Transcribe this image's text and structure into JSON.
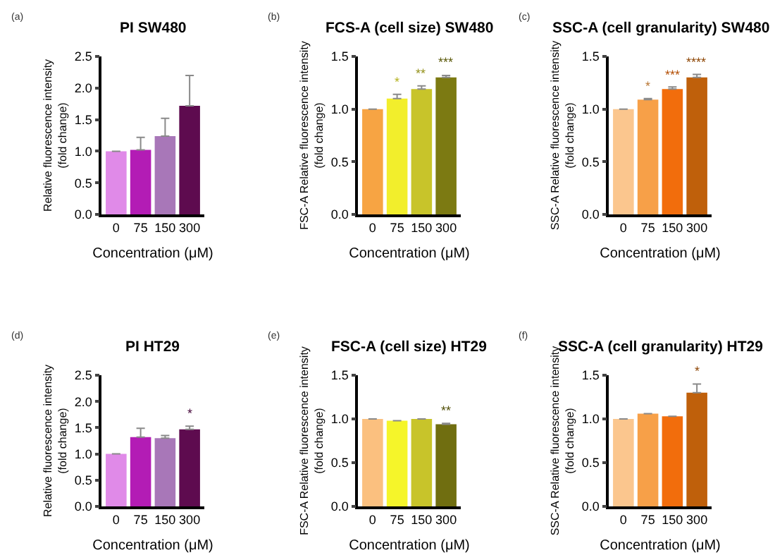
{
  "chart_data": [
    {
      "type": "bar",
      "title": "PI SW480",
      "xlabel": "Concentration (μM)",
      "ylabel": "Relative fluorescence intensity\n(fold change)",
      "categories": [
        "0",
        "75",
        "150",
        "300"
      ],
      "values": [
        1.0,
        1.02,
        1.24,
        1.72
      ],
      "errors": [
        null,
        [
          1.02,
          1.22
        ],
        [
          1.24,
          1.52
        ],
        [
          1.72,
          2.2
        ]
      ],
      "colors": [
        "#e08ae8",
        "#b31cb5",
        "#a877b8",
        "#5e0b4f"
      ],
      "ylim": [
        0,
        2.5
      ],
      "yticks": [
        {
          "value": 0,
          "label": "0.0"
        },
        0.5,
        {
          "value": 1,
          "label": "1.0"
        },
        1.5,
        {
          "value": 2,
          "label": "2.0"
        },
        2.5
      ],
      "annotations": [
        "(a)"
      ]
    },
    {
      "type": "bar",
      "title": "FCS-A (cell size) SW480",
      "xlabel": "Concentration (μM)",
      "ylabel": "FSC-A Relative fluorescence intensity\n(fold change)",
      "categories": [
        "0",
        "75",
        "150",
        "300"
      ],
      "values": [
        1.0,
        1.1,
        1.19,
        1.3
      ],
      "errors": [
        null,
        [
          1.1,
          1.14
        ],
        [
          1.19,
          1.22
        ],
        [
          1.3,
          1.32
        ]
      ],
      "colors": [
        "#f7a443",
        "#f2ee2c",
        "#c8c42a",
        "#7c7a12"
      ],
      "ylim": [
        0,
        1.5
      ],
      "yticks": [
        {
          "value": 0,
          "label": "0.0"
        },
        0.5,
        {
          "value": 1,
          "label": "1.0"
        },
        1.5
      ],
      "annotations": [
        "(b)",
        {
          "text": "*",
          "x": "75",
          "y": 1.14
        },
        {
          "text": "**",
          "x": "150",
          "y": 1.22
        },
        {
          "text": "***",
          "x": "300",
          "y": 1.32
        }
      ]
    },
    {
      "type": "bar",
      "title": "SSC-A (cell granularity) SW480",
      "xlabel": "Concentration (μM)",
      "ylabel": "SSC-A Relative fluorescence intensity\n(fold change)",
      "categories": [
        "0",
        "75",
        "150",
        "300"
      ],
      "values": [
        1.0,
        1.09,
        1.19,
        1.3
      ],
      "errors": [
        null,
        [
          1.09,
          1.1
        ],
        [
          1.19,
          1.21
        ],
        [
          1.3,
          1.33
        ]
      ],
      "colors": [
        "#fbc68e",
        "#f7a048",
        "#f26d0c",
        "#bf600b"
      ],
      "ylim": [
        0,
        1.5
      ],
      "yticks": [
        {
          "value": 0,
          "label": "0.0"
        },
        0.5,
        {
          "value": 1,
          "label": "1.0"
        },
        1.5
      ],
      "annotations": [
        "(c)",
        {
          "text": "*",
          "x": "75",
          "y": 1.1
        },
        {
          "text": "***",
          "x": "150",
          "y": 1.21
        },
        {
          "text": "****",
          "x": "300",
          "y": 1.33
        }
      ]
    },
    {
      "type": "bar",
      "title": "PI HT29",
      "xlabel": "Concentration (μM)",
      "ylabel": "Relative fluorescence intensity\n(fold change)",
      "categories": [
        "0",
        "75",
        "150",
        "300"
      ],
      "values": [
        1.0,
        1.32,
        1.3,
        1.47
      ],
      "errors": [
        null,
        [
          1.32,
          1.49
        ],
        [
          1.3,
          1.35
        ],
        [
          1.47,
          1.53
        ]
      ],
      "colors": [
        "#e08ae8",
        "#b31cb5",
        "#a877b8",
        "#5e0b4f"
      ],
      "ylim": [
        0,
        2.5
      ],
      "yticks": [
        {
          "value": 0,
          "label": "0.0"
        },
        0.5,
        {
          "value": 1,
          "label": "1.0"
        },
        1.5,
        {
          "value": 2,
          "label": "2.0"
        },
        2.5
      ],
      "annotations": [
        "(d)",
        {
          "text": "*",
          "x": "300",
          "y": 1.53
        }
      ]
    },
    {
      "type": "bar",
      "title": "FSC-A (cell size) HT29",
      "xlabel": "Concentration (μM)",
      "ylabel": "FSC-A Relative fluorescence intensity\n(fold change)",
      "categories": [
        "0",
        "75",
        "150",
        "300"
      ],
      "values": [
        1.0,
        0.98,
        1.0,
        0.94
      ],
      "errors": [
        null,
        null,
        null,
        [
          0.94,
          0.95
        ]
      ],
      "colors": [
        "#fbc07f",
        "#f5f52a",
        "#c8c42a",
        "#706e10"
      ],
      "ylim": [
        0,
        1.5
      ],
      "yticks": [
        {
          "value": 0,
          "label": "0.0"
        },
        0.5,
        {
          "value": 1,
          "label": "1.0"
        },
        1.5
      ],
      "annotations": [
        "(e)",
        {
          "text": "**",
          "x": "300",
          "y": 0.95
        }
      ]
    },
    {
      "type": "bar",
      "title": "SSC-A (cell granularity) HT29",
      "xlabel": "Concentration (μM)",
      "ylabel": "SSC-A Relative fluorescence intensity\n(fold change)",
      "categories": [
        "0",
        "75",
        "150",
        "300"
      ],
      "values": [
        1.0,
        1.06,
        1.03,
        1.3
      ],
      "errors": [
        null,
        null,
        null,
        [
          1.3,
          1.4
        ]
      ],
      "colors": [
        "#fbc68e",
        "#f7a048",
        "#f26d0c",
        "#bf600b"
      ],
      "ylim": [
        0,
        1.5
      ],
      "yticks": [
        {
          "value": 0,
          "label": "0.0"
        },
        0.5,
        {
          "value": 1,
          "label": "1.0"
        },
        1.5
      ],
      "annotations": [
        "(f)",
        {
          "text": "*",
          "x": "300",
          "y": 1.4
        }
      ]
    }
  ]
}
